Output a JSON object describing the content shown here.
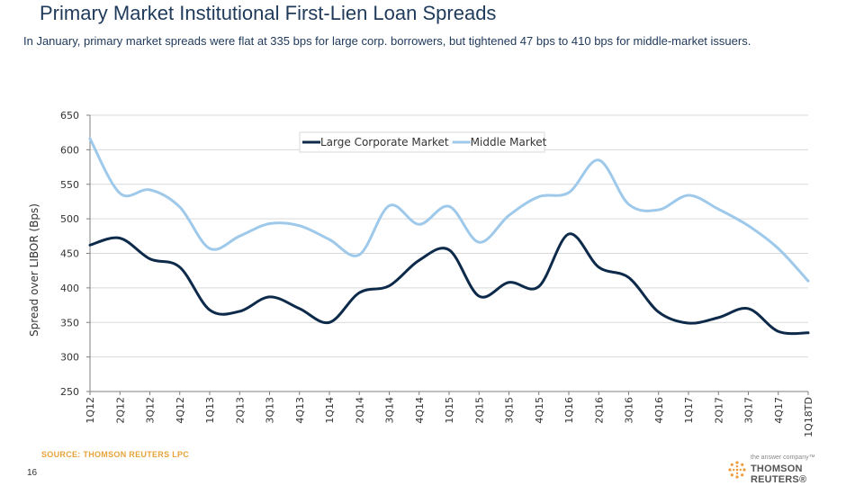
{
  "slide": {
    "title": "Primary Market Institutional First-Lien Loan Spreads",
    "subtitle": "In January, primary market spreads were flat at 335 bps for large corp. borrowers, but tightened 47 bps to 410 bps for middle-market issuers.",
    "source": "SOURCE: THOMSON REUTERS LPC",
    "page_number": "16",
    "logo": {
      "tagline": "the answer company™",
      "name": "THOMSON REUTERS®"
    }
  },
  "colors": {
    "large_corporate": "#0d2a4a",
    "middle_market": "#9ec9ea",
    "grid": "#d9d9d9",
    "axis": "#7f7f7f"
  },
  "chart_data": {
    "type": "line",
    "title": "",
    "xlabel": "",
    "ylabel": "Spread over LIBOR (Bps)",
    "ylim": [
      250,
      650
    ],
    "yticks": [
      250,
      300,
      350,
      400,
      450,
      500,
      550,
      600,
      650
    ],
    "grid": true,
    "legend_position": "top-right",
    "categories": [
      "1Q12",
      "2Q12",
      "3Q12",
      "4Q12",
      "1Q13",
      "2Q13",
      "3Q13",
      "4Q13",
      "1Q14",
      "2Q14",
      "3Q14",
      "4Q14",
      "1Q15",
      "2Q15",
      "3Q15",
      "4Q15",
      "1Q16",
      "2Q16",
      "3Q16",
      "4Q16",
      "1Q17",
      "2Q17",
      "3Q17",
      "4Q17",
      "1Q18TD"
    ],
    "series": [
      {
        "name": "Large Corporate Market",
        "color": "#0d2a4a",
        "values": [
          462,
          472,
          442,
          430,
          368,
          366,
          387,
          370,
          350,
          393,
          403,
          440,
          455,
          388,
          408,
          402,
          478,
          430,
          415,
          365,
          349,
          357,
          370,
          337,
          335
        ]
      },
      {
        "name": "Middle Market",
        "color": "#9ec9ea",
        "values": [
          616,
          537,
          542,
          517,
          457,
          475,
          493,
          490,
          470,
          448,
          519,
          492,
          518,
          466,
          505,
          532,
          538,
          585,
          521,
          513,
          534,
          514,
          490,
          457,
          410
        ]
      }
    ]
  }
}
